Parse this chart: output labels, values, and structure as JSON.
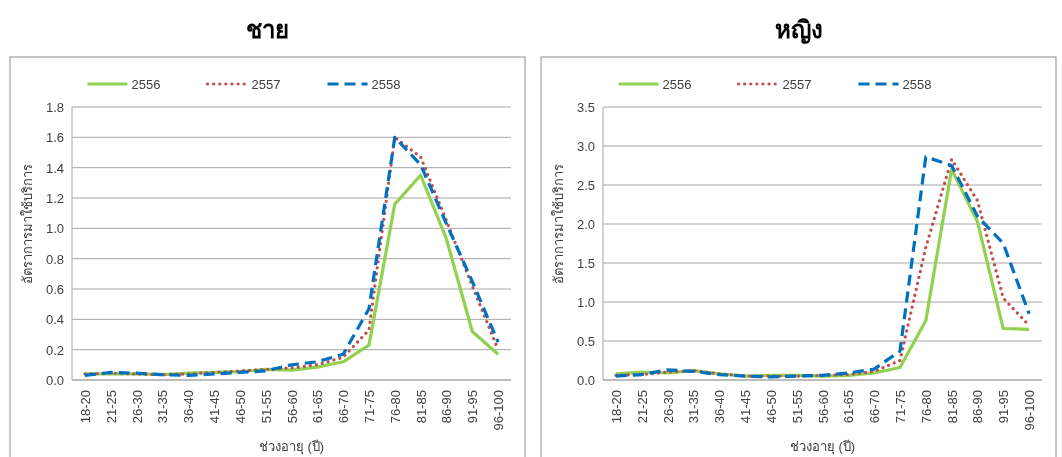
{
  "chart_data": [
    {
      "type": "line",
      "title": "ชาย",
      "xlabel": "ช่วงอายุ (ปี)",
      "ylabel": "อัตราการมาใช้บริการ",
      "legend": "top",
      "grid": "y",
      "categories": [
        "18-20",
        "21-25",
        "26-30",
        "31-35",
        "36-40",
        "41-45",
        "46-50",
        "51-55",
        "56-60",
        "61-65",
        "66-70",
        "71-75",
        "76-80",
        "81-85",
        "86-90",
        "91-95",
        "96-100"
      ],
      "ylim": [
        0,
        1.8
      ],
      "yticks": [
        {
          "value": 0,
          "label": "0.0"
        },
        {
          "value": 0.2,
          "label": "0.2"
        },
        {
          "value": 0.4,
          "label": "0.4"
        },
        {
          "value": 0.6,
          "label": "0.6"
        },
        {
          "value": 0.8,
          "label": "0.8"
        },
        {
          "value": 1,
          "label": "1.0"
        },
        {
          "value": 1.2,
          "label": "1.2"
        },
        {
          "value": 1.4,
          "label": "1.4"
        },
        {
          "value": 1.6,
          "label": "1.6"
        },
        {
          "value": 1.8,
          "label": "1.8"
        }
      ],
      "series": [
        {
          "name": "2556",
          "color": "#92d050",
          "line_style": "solid",
          "values": [
            0.04,
            0.04,
            0.04,
            0.035,
            0.045,
            0.05,
            0.055,
            0.07,
            0.065,
            0.085,
            0.12,
            0.23,
            1.16,
            1.35,
            0.93,
            0.32,
            0.17
          ]
        },
        {
          "name": "2557",
          "color": "#c0504d",
          "line_style": "dotted",
          "values": [
            0.04,
            0.045,
            0.04,
            0.035,
            0.04,
            0.05,
            0.06,
            0.07,
            0.08,
            0.1,
            0.15,
            0.33,
            1.6,
            1.47,
            1.05,
            0.62,
            0.2
          ]
        },
        {
          "name": "2558",
          "color": "#0070c0",
          "line_style": "dashed",
          "values": [
            0.03,
            0.05,
            0.045,
            0.035,
            0.03,
            0.04,
            0.05,
            0.06,
            0.1,
            0.12,
            0.17,
            0.47,
            1.6,
            1.42,
            1.03,
            0.65,
            0.25
          ]
        }
      ]
    },
    {
      "type": "line",
      "title": "หญิง",
      "xlabel": "ช่วงอายุ (ปี)",
      "ylabel": "อัตราการมาใช้บริการ",
      "legend": "top",
      "grid": "y",
      "categories": [
        "18-20",
        "21-25",
        "26-30",
        "31-35",
        "36-40",
        "41-45",
        "46-50",
        "51-55",
        "56-60",
        "61-65",
        "66-70",
        "71-75",
        "76-80",
        "81-85",
        "86-90",
        "91-95",
        "96-100"
      ],
      "ylim": [
        0,
        3.5
      ],
      "yticks": [
        {
          "value": 0,
          "label": "0.0"
        },
        {
          "value": 0.5,
          "label": "0.5"
        },
        {
          "value": 1,
          "label": "1.0"
        },
        {
          "value": 1.5,
          "label": "1.5"
        },
        {
          "value": 2,
          "label": "2.0"
        },
        {
          "value": 2.5,
          "label": "2.5"
        },
        {
          "value": 3,
          "label": "3.0"
        },
        {
          "value": 3.5,
          "label": "3.5"
        }
      ],
      "series": [
        {
          "name": "2556",
          "color": "#92d050",
          "line_style": "solid",
          "values": [
            0.08,
            0.1,
            0.09,
            0.12,
            0.08,
            0.05,
            0.06,
            0.06,
            0.05,
            0.06,
            0.09,
            0.16,
            0.76,
            2.7,
            2.03,
            0.66,
            0.65
          ]
        },
        {
          "name": "2557",
          "color": "#c0504d",
          "line_style": "dotted",
          "values": [
            0.06,
            0.07,
            0.1,
            0.12,
            0.08,
            0.05,
            0.05,
            0.05,
            0.06,
            0.07,
            0.11,
            0.25,
            1.7,
            2.83,
            2.3,
            1.05,
            0.7
          ]
        },
        {
          "name": "2558",
          "color": "#0070c0",
          "line_style": "dashed",
          "values": [
            0.05,
            0.07,
            0.13,
            0.11,
            0.07,
            0.05,
            0.04,
            0.05,
            0.06,
            0.09,
            0.14,
            0.37,
            2.86,
            2.75,
            2.1,
            1.75,
            0.85
          ]
        }
      ]
    }
  ]
}
